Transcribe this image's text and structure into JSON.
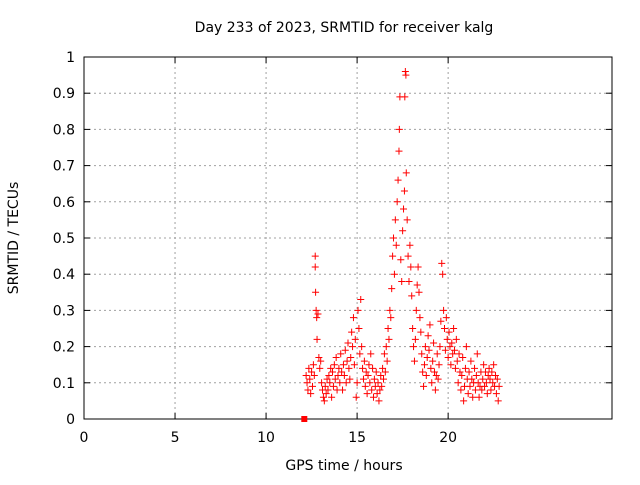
{
  "chart_data": {
    "type": "scatter",
    "title": "Day 233 of 2023, SRMTID for receiver kalg",
    "xlabel": "GPS time / hours",
    "ylabel": "SRMTID / TECUs",
    "xlim": [
      0,
      29
    ],
    "ylim": [
      0,
      1
    ],
    "xticks": [
      0,
      5,
      10,
      15,
      20
    ],
    "yticks": [
      0,
      0.1,
      0.2,
      0.3,
      0.4,
      0.5,
      0.6,
      0.7,
      0.8,
      0.9,
      1
    ],
    "ytick_labels": [
      "0",
      "0.1",
      "0.2",
      "0.3",
      "0.4",
      "0.5",
      "0.6",
      "0.7",
      "0.8",
      "0.9",
      "1"
    ],
    "grid": true,
    "marker": "+",
    "color": "#ff0000",
    "special_points": [
      {
        "x": 12.1,
        "y": 0.0,
        "marker": "square"
      }
    ],
    "points": [
      [
        12.2,
        0.12
      ],
      [
        12.25,
        0.1
      ],
      [
        12.3,
        0.08
      ],
      [
        12.35,
        0.14
      ],
      [
        12.4,
        0.11
      ],
      [
        12.45,
        0.07
      ],
      [
        12.5,
        0.13
      ],
      [
        12.55,
        0.09
      ],
      [
        12.6,
        0.15
      ],
      [
        12.65,
        0.12
      ],
      [
        12.7,
        0.45
      ],
      [
        12.7,
        0.42
      ],
      [
        12.72,
        0.35
      ],
      [
        12.75,
        0.3
      ],
      [
        12.78,
        0.28
      ],
      [
        12.8,
        0.22
      ],
      [
        12.85,
        0.29
      ],
      [
        12.9,
        0.17
      ],
      [
        12.95,
        0.14
      ],
      [
        13.0,
        0.16
      ],
      [
        13.05,
        0.1
      ],
      [
        13.1,
        0.08
      ],
      [
        13.15,
        0.06
      ],
      [
        13.2,
        0.05
      ],
      [
        13.25,
        0.09
      ],
      [
        13.3,
        0.07
      ],
      [
        13.35,
        0.11
      ],
      [
        13.4,
        0.08
      ],
      [
        13.45,
        0.12
      ],
      [
        13.5,
        0.1
      ],
      [
        13.55,
        0.14
      ],
      [
        13.6,
        0.06
      ],
      [
        13.65,
        0.13
      ],
      [
        13.7,
        0.09
      ],
      [
        13.75,
        0.15
      ],
      [
        13.8,
        0.11
      ],
      [
        13.85,
        0.17
      ],
      [
        13.9,
        0.08
      ],
      [
        13.95,
        0.12
      ],
      [
        14.0,
        0.14
      ],
      [
        14.05,
        0.1
      ],
      [
        14.1,
        0.18
      ],
      [
        14.15,
        0.13
      ],
      [
        14.2,
        0.08
      ],
      [
        14.25,
        0.15
      ],
      [
        14.3,
        0.12
      ],
      [
        14.35,
        0.19
      ],
      [
        14.4,
        0.1
      ],
      [
        14.45,
        0.16
      ],
      [
        14.5,
        0.21
      ],
      [
        14.55,
        0.14
      ],
      [
        14.6,
        0.11
      ],
      [
        14.65,
        0.17
      ],
      [
        14.7,
        0.24
      ],
      [
        14.75,
        0.2
      ],
      [
        14.8,
        0.28
      ],
      [
        14.85,
        0.15
      ],
      [
        14.9,
        0.22
      ],
      [
        14.95,
        0.06
      ],
      [
        15.0,
        0.1
      ],
      [
        15.05,
        0.3
      ],
      [
        15.1,
        0.25
      ],
      [
        15.15,
        0.18
      ],
      [
        15.2,
        0.33
      ],
      [
        15.25,
        0.2
      ],
      [
        15.3,
        0.14
      ],
      [
        15.35,
        0.11
      ],
      [
        15.4,
        0.16
      ],
      [
        15.45,
        0.09
      ],
      [
        15.5,
        0.13
      ],
      [
        15.55,
        0.07
      ],
      [
        15.6,
        0.12
      ],
      [
        15.65,
        0.15
      ],
      [
        15.7,
        0.1
      ],
      [
        15.75,
        0.18
      ],
      [
        15.8,
        0.08
      ],
      [
        15.85,
        0.14
      ],
      [
        15.9,
        0.06
      ],
      [
        15.95,
        0.11
      ],
      [
        16.0,
        0.09
      ],
      [
        16.05,
        0.13
      ],
      [
        16.1,
        0.07
      ],
      [
        16.15,
        0.1
      ],
      [
        16.2,
        0.05
      ],
      [
        16.25,
        0.08
      ],
      [
        16.3,
        0.12
      ],
      [
        16.35,
        0.09
      ],
      [
        16.4,
        0.14
      ],
      [
        16.45,
        0.11
      ],
      [
        16.5,
        0.18
      ],
      [
        16.55,
        0.13
      ],
      [
        16.6,
        0.2
      ],
      [
        16.65,
        0.16
      ],
      [
        16.7,
        0.25
      ],
      [
        16.75,
        0.22
      ],
      [
        16.8,
        0.3
      ],
      [
        16.85,
        0.28
      ],
      [
        16.9,
        0.36
      ],
      [
        16.95,
        0.45
      ],
      [
        17.0,
        0.5
      ],
      [
        17.05,
        0.4
      ],
      [
        17.1,
        0.55
      ],
      [
        17.15,
        0.48
      ],
      [
        17.2,
        0.6
      ],
      [
        17.25,
        0.66
      ],
      [
        17.3,
        0.74
      ],
      [
        17.32,
        0.8
      ],
      [
        17.35,
        0.89
      ],
      [
        17.4,
        0.44
      ],
      [
        17.45,
        0.38
      ],
      [
        17.5,
        0.52
      ],
      [
        17.55,
        0.58
      ],
      [
        17.6,
        0.63
      ],
      [
        17.62,
        0.89
      ],
      [
        17.65,
        0.96
      ],
      [
        17.68,
        0.95
      ],
      [
        17.7,
        0.68
      ],
      [
        17.75,
        0.55
      ],
      [
        17.8,
        0.45
      ],
      [
        17.85,
        0.38
      ],
      [
        17.9,
        0.48
      ],
      [
        17.95,
        0.42
      ],
      [
        18.0,
        0.34
      ],
      [
        18.05,
        0.25
      ],
      [
        18.1,
        0.2
      ],
      [
        18.15,
        0.16
      ],
      [
        18.2,
        0.22
      ],
      [
        18.25,
        0.3
      ],
      [
        18.3,
        0.37
      ],
      [
        18.35,
        0.42
      ],
      [
        18.4,
        0.35
      ],
      [
        18.45,
        0.28
      ],
      [
        18.5,
        0.24
      ],
      [
        18.55,
        0.18
      ],
      [
        18.6,
        0.13
      ],
      [
        18.65,
        0.09
      ],
      [
        18.7,
        0.15
      ],
      [
        18.75,
        0.2
      ],
      [
        18.8,
        0.12
      ],
      [
        18.85,
        0.17
      ],
      [
        18.9,
        0.23
      ],
      [
        18.95,
        0.19
      ],
      [
        19.0,
        0.26
      ],
      [
        19.05,
        0.14
      ],
      [
        19.1,
        0.1
      ],
      [
        19.15,
        0.16
      ],
      [
        19.2,
        0.21
      ],
      [
        19.25,
        0.13
      ],
      [
        19.3,
        0.08
      ],
      [
        19.35,
        0.12
      ],
      [
        19.4,
        0.18
      ],
      [
        19.45,
        0.11
      ],
      [
        19.5,
        0.15
      ],
      [
        19.55,
        0.2
      ],
      [
        19.6,
        0.27
      ],
      [
        19.65,
        0.43
      ],
      [
        19.7,
        0.4
      ],
      [
        19.75,
        0.3
      ],
      [
        19.8,
        0.25
      ],
      [
        19.85,
        0.19
      ],
      [
        19.9,
        0.28
      ],
      [
        19.95,
        0.22
      ],
      [
        20.0,
        0.17
      ],
      [
        20.05,
        0.24
      ],
      [
        20.1,
        0.2
      ],
      [
        20.15,
        0.15
      ],
      [
        20.2,
        0.21
      ],
      [
        20.25,
        0.18
      ],
      [
        20.3,
        0.25
      ],
      [
        20.35,
        0.19
      ],
      [
        20.4,
        0.14
      ],
      [
        20.45,
        0.22
      ],
      [
        20.5,
        0.16
      ],
      [
        20.55,
        0.1
      ],
      [
        20.6,
        0.18
      ],
      [
        20.65,
        0.13
      ],
      [
        20.7,
        0.08
      ],
      [
        20.75,
        0.12
      ],
      [
        20.8,
        0.17
      ],
      [
        20.85,
        0.05
      ],
      [
        20.9,
        0.09
      ],
      [
        20.95,
        0.14
      ],
      [
        21.0,
        0.2
      ],
      [
        21.05,
        0.11
      ],
      [
        21.1,
        0.07
      ],
      [
        21.15,
        0.13
      ],
      [
        21.2,
        0.09
      ],
      [
        21.25,
        0.16
      ],
      [
        21.3,
        0.11
      ],
      [
        21.35,
        0.06
      ],
      [
        21.4,
        0.1
      ],
      [
        21.45,
        0.14
      ],
      [
        21.5,
        0.08
      ],
      [
        21.55,
        0.12
      ],
      [
        21.6,
        0.18
      ],
      [
        21.65,
        0.1
      ],
      [
        21.7,
        0.06
      ],
      [
        21.75,
        0.09
      ],
      [
        21.8,
        0.13
      ],
      [
        21.85,
        0.08
      ],
      [
        21.9,
        0.11
      ],
      [
        21.95,
        0.15
      ],
      [
        22.0,
        0.09
      ],
      [
        22.05,
        0.13
      ],
      [
        22.1,
        0.1
      ],
      [
        22.15,
        0.07
      ],
      [
        22.2,
        0.12
      ],
      [
        22.25,
        0.14
      ],
      [
        22.3,
        0.11
      ],
      [
        22.35,
        0.08
      ],
      [
        22.4,
        0.13
      ],
      [
        22.45,
        0.1
      ],
      [
        22.5,
        0.15
      ],
      [
        22.55,
        0.09
      ],
      [
        22.6,
        0.12
      ],
      [
        22.65,
        0.07
      ],
      [
        22.7,
        0.11
      ],
      [
        22.75,
        0.05
      ],
      [
        22.8,
        0.09
      ]
    ]
  }
}
